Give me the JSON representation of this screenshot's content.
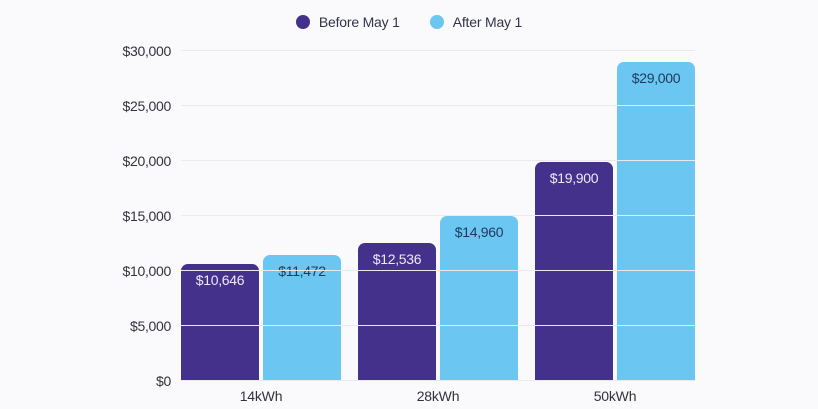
{
  "chart_data": {
    "type": "bar",
    "title": "",
    "categories": [
      "14kWh",
      "28kWh",
      "50kWh"
    ],
    "series": [
      {
        "name": "Before May 1",
        "color": "#43318B",
        "label_color": "#EDEAF6",
        "values": [
          10646,
          12536,
          19900
        ],
        "labels": [
          "$10,646",
          "$12,536",
          "$19,900"
        ]
      },
      {
        "name": "After May 1",
        "color": "#6CC6F2",
        "label_color": "#1C3A5E",
        "values": [
          11472,
          14960,
          29000
        ],
        "labels": [
          "$11,472",
          "$14,960",
          "$29,000"
        ]
      }
    ],
    "ylim": [
      0,
      30000
    ],
    "y_ticks": [
      {
        "value": 0,
        "label": "$0"
      },
      {
        "value": 5000,
        "label": "$5,000"
      },
      {
        "value": 10000,
        "label": "$10,000"
      },
      {
        "value": 15000,
        "label": "$15,000"
      },
      {
        "value": 20000,
        "label": "$20,000"
      },
      {
        "value": 25000,
        "label": "$25,000"
      },
      {
        "value": 30000,
        "label": "$30,000"
      }
    ],
    "grid": "horizontal",
    "legend_position": "top"
  },
  "colors": {
    "background": "#FAFAFC",
    "gridline": "#E9E9EF",
    "axis_text": "#32323E",
    "legend_text": "#33334A"
  }
}
